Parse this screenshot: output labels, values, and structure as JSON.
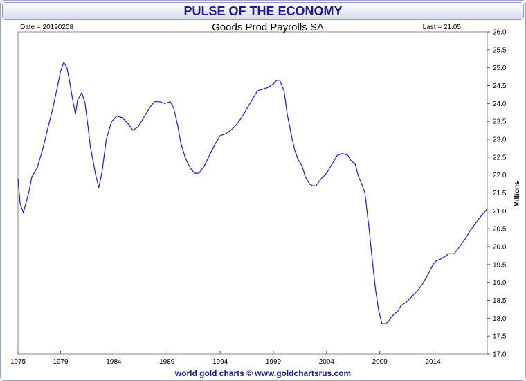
{
  "header": {
    "title": "PULSE OF THE ECONOMY"
  },
  "info": {
    "date_label": "Date = 20190208",
    "series_title": "Goods Prod Payrolls SA",
    "last_label": "Last = 21.05"
  },
  "footer": {
    "credit": "world gold charts © www.goldchartsrus.com"
  },
  "colors": {
    "line": "#1a1ad6",
    "title": "#1c1c8c",
    "frame": "#9aa6c8"
  },
  "chart_data": {
    "type": "line",
    "title": "Goods Prod Payrolls SA",
    "xlabel": "",
    "ylabel": "Millions",
    "xlim": [
      1975,
      2019.1
    ],
    "ylim": [
      17.0,
      26.0
    ],
    "x_ticks": [
      "1975",
      "1979",
      "1984",
      "1989",
      "1994",
      "1999",
      "2004",
      "2009",
      "2014"
    ],
    "y_ticks": [
      "17.0",
      "17.5",
      "18.0",
      "18.5",
      "19.0",
      "19.5",
      "20.0",
      "20.5",
      "21.0",
      "21.5",
      "22.0",
      "22.5",
      "23.0",
      "23.5",
      "24.0",
      "24.5",
      "25.0",
      "25.5",
      "26.0"
    ],
    "grid": false,
    "y_axis_side": "right",
    "series": [
      {
        "x": [
          1975.0,
          1975.2,
          1975.5,
          1976.0,
          1976.3,
          1976.8,
          1977.3,
          1977.8,
          1978.3,
          1978.8,
          1979.0,
          1979.3,
          1979.6,
          1979.8,
          1980.2,
          1980.4,
          1980.6,
          1981.0,
          1981.3,
          1981.6,
          1981.8,
          1982.3,
          1982.6,
          1982.9,
          1983.3,
          1983.8,
          1984.3,
          1984.8,
          1985.3,
          1985.8,
          1986.3,
          1986.7,
          1987.3,
          1987.8,
          1988.3,
          1988.8,
          1989.3,
          1989.6,
          1990.0,
          1990.3,
          1990.7,
          1991.0,
          1991.3,
          1991.6,
          1992.0,
          1992.5,
          1993.0,
          1993.5,
          1994.0,
          1994.5,
          1995.0,
          1995.5,
          1996.0,
          1996.5,
          1997.0,
          1997.5,
          1998.0,
          1998.5,
          1999.0,
          1999.3,
          1999.6,
          2000.0,
          2000.3,
          2000.7,
          2001.0,
          2001.3,
          2001.7,
          2002.0,
          2002.4,
          2002.7,
          2003.0,
          2003.5,
          2004.0,
          2004.5,
          2005.0,
          2005.5,
          2006.0,
          2006.3,
          2006.7,
          2007.0,
          2007.3,
          2007.6,
          2008.0,
          2008.3,
          2008.6,
          2008.9,
          2009.2,
          2009.5,
          2009.8,
          2010.0,
          2010.3,
          2010.7,
          2011.0,
          2011.5,
          2012.0,
          2012.5,
          2013.0,
          2013.5,
          2014.0,
          2014.3,
          2014.7,
          2015.0,
          2015.5,
          2016.0,
          2016.5,
          2017.0,
          2017.5,
          2018.0,
          2018.5,
          2019.08
        ],
        "y": [
          21.9,
          21.2,
          20.95,
          21.5,
          21.95,
          22.2,
          22.7,
          23.3,
          23.9,
          24.6,
          24.9,
          25.15,
          25.0,
          24.7,
          24.0,
          23.7,
          24.1,
          24.3,
          24.0,
          23.3,
          22.8,
          22.0,
          21.65,
          22.1,
          23.0,
          23.5,
          23.65,
          23.6,
          23.45,
          23.25,
          23.35,
          23.55,
          23.85,
          24.05,
          24.05,
          24.0,
          24.05,
          23.9,
          23.4,
          22.9,
          22.5,
          22.3,
          22.15,
          22.05,
          22.05,
          22.25,
          22.55,
          22.85,
          23.1,
          23.15,
          23.25,
          23.4,
          23.6,
          23.85,
          24.1,
          24.35,
          24.4,
          24.45,
          24.55,
          24.65,
          24.65,
          24.35,
          23.7,
          23.1,
          22.7,
          22.45,
          22.25,
          21.95,
          21.75,
          21.7,
          21.7,
          21.9,
          22.05,
          22.3,
          22.55,
          22.6,
          22.55,
          22.4,
          22.3,
          21.95,
          21.75,
          21.5,
          20.5,
          19.6,
          18.8,
          18.2,
          17.85,
          17.85,
          17.9,
          18.0,
          18.1,
          18.2,
          18.35,
          18.45,
          18.6,
          18.75,
          18.95,
          19.2,
          19.5,
          19.6,
          19.65,
          19.7,
          19.8,
          19.8,
          20.0,
          20.2,
          20.45,
          20.65,
          20.85,
          21.05
        ]
      }
    ]
  }
}
